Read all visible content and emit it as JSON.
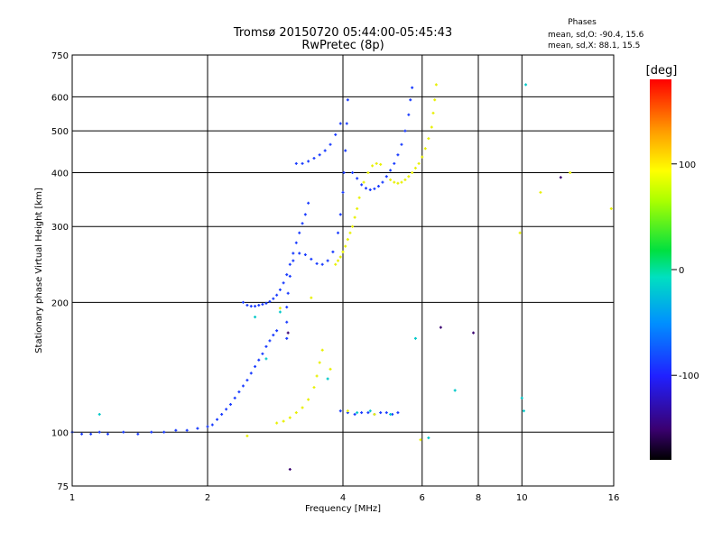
{
  "chart_data": {
    "type": "scatter",
    "title": "Tromsø 20150720 05:44:00-05:45:43",
    "subtitle": "RwPretec (8p)",
    "xlabel": "Frequency [MHz]",
    "ylabel": "Stationary phase Virtual Height [km]",
    "x_scale": "log",
    "y_scale": "log",
    "xlim": [
      1,
      16
    ],
    "ylim": [
      75,
      750
    ],
    "x_ticks": [
      "1",
      "2",
      "4",
      "6",
      "8",
      "10",
      "16"
    ],
    "x_tick_values": [
      1,
      2,
      4,
      6,
      8,
      10,
      16
    ],
    "y_ticks": [
      "75",
      "100",
      "200",
      "300",
      "400",
      "500",
      "600",
      "750"
    ],
    "y_tick_values": [
      75,
      100,
      200,
      300,
      400,
      500,
      600,
      750
    ],
    "grid": true,
    "phase_stats": {
      "title": "Phases",
      "line1": "mean, sd,O: -90.4, 15.6",
      "line2": "mean, sd,X: 88.1, 15.5"
    },
    "colorbar": {
      "label": "[deg]",
      "ticks": [
        "100",
        "0",
        "-100"
      ],
      "tick_values": [
        100,
        0,
        -100
      ],
      "range": [
        -180,
        180
      ]
    },
    "traces": [
      {
        "phase": -100,
        "points": [
          [
            1.0,
            100
          ],
          [
            1.05,
            99
          ],
          [
            1.1,
            99
          ],
          [
            1.15,
            100
          ],
          [
            1.2,
            99
          ],
          [
            1.3,
            100
          ],
          [
            1.4,
            99
          ],
          [
            1.5,
            100
          ],
          [
            1.6,
            100
          ],
          [
            1.7,
            101
          ],
          [
            1.8,
            101
          ],
          [
            1.9,
            102
          ],
          [
            2.0,
            103
          ],
          [
            2.05,
            104
          ],
          [
            2.1,
            107
          ],
          [
            2.15,
            110
          ],
          [
            2.2,
            113
          ],
          [
            2.25,
            116
          ],
          [
            2.3,
            120
          ],
          [
            2.35,
            124
          ],
          [
            2.4,
            128
          ],
          [
            2.45,
            132
          ],
          [
            2.5,
            137
          ],
          [
            2.55,
            142
          ],
          [
            2.6,
            147
          ],
          [
            2.65,
            152
          ],
          [
            2.7,
            158
          ],
          [
            2.75,
            163
          ],
          [
            2.8,
            168
          ],
          [
            2.85,
            172
          ]
        ]
      },
      {
        "phase": -100,
        "points": [
          [
            2.4,
            200
          ],
          [
            2.45,
            197
          ],
          [
            2.5,
            196
          ],
          [
            2.55,
            196
          ],
          [
            2.6,
            197
          ],
          [
            2.65,
            198
          ],
          [
            2.7,
            199
          ],
          [
            2.75,
            201
          ],
          [
            2.8,
            204
          ],
          [
            2.85,
            208
          ],
          [
            2.9,
            214
          ],
          [
            2.95,
            222
          ],
          [
            3.0,
            232
          ],
          [
            3.05,
            245
          ],
          [
            3.1,
            260
          ],
          [
            3.15,
            275
          ],
          [
            3.2,
            290
          ],
          [
            3.25,
            305
          ],
          [
            3.3,
            320
          ],
          [
            3.35,
            340
          ]
        ]
      },
      {
        "phase": -100,
        "points": [
          [
            3.0,
            165
          ],
          [
            3.0,
            180
          ],
          [
            3.0,
            195
          ],
          [
            3.02,
            210
          ],
          [
            3.05,
            230
          ],
          [
            3.1,
            250
          ],
          [
            3.2,
            260
          ],
          [
            3.3,
            258
          ],
          [
            3.4,
            252
          ],
          [
            3.5,
            246
          ],
          [
            3.6,
            245
          ],
          [
            3.7,
            250
          ],
          [
            3.8,
            262
          ],
          [
            3.9,
            290
          ],
          [
            3.95,
            320
          ],
          [
            4.0,
            360
          ],
          [
            4.02,
            400
          ],
          [
            4.05,
            450
          ],
          [
            4.08,
            520
          ],
          [
            4.1,
            590
          ]
        ]
      },
      {
        "phase": -100,
        "points": [
          [
            3.15,
            420
          ],
          [
            3.25,
            420
          ],
          [
            3.35,
            425
          ],
          [
            3.45,
            432
          ],
          [
            3.55,
            440
          ],
          [
            3.65,
            450
          ],
          [
            3.75,
            465
          ],
          [
            3.85,
            490
          ],
          [
            3.95,
            520
          ]
        ]
      },
      {
        "phase": -100,
        "points": [
          [
            4.2,
            400
          ],
          [
            4.3,
            388
          ],
          [
            4.4,
            375
          ],
          [
            4.5,
            368
          ],
          [
            4.6,
            365
          ],
          [
            4.7,
            367
          ],
          [
            4.8,
            372
          ],
          [
            4.9,
            380
          ],
          [
            5.0,
            392
          ],
          [
            5.1,
            405
          ],
          [
            5.2,
            420
          ],
          [
            5.3,
            440
          ],
          [
            5.4,
            465
          ],
          [
            5.5,
            500
          ],
          [
            5.6,
            545
          ],
          [
            5.65,
            590
          ],
          [
            5.7,
            630
          ]
        ]
      },
      {
        "phase": 100,
        "points": [
          [
            3.85,
            245
          ],
          [
            3.9,
            250
          ],
          [
            3.95,
            255
          ],
          [
            4.0,
            262
          ],
          [
            4.05,
            270
          ],
          [
            4.1,
            280
          ],
          [
            4.15,
            290
          ],
          [
            4.2,
            300
          ],
          [
            4.25,
            315
          ],
          [
            4.3,
            330
          ],
          [
            4.35,
            350
          ],
          [
            4.45,
            380
          ],
          [
            4.55,
            400
          ],
          [
            4.65,
            415
          ],
          [
            4.75,
            420
          ],
          [
            4.85,
            418
          ]
        ]
      },
      {
        "phase": 100,
        "points": [
          [
            5.1,
            385
          ],
          [
            5.2,
            380
          ],
          [
            5.3,
            378
          ],
          [
            5.4,
            380
          ],
          [
            5.5,
            385
          ],
          [
            5.6,
            392
          ],
          [
            5.7,
            400
          ],
          [
            5.8,
            410
          ],
          [
            5.9,
            420
          ],
          [
            6.0,
            435
          ],
          [
            6.1,
            455
          ],
          [
            6.2,
            480
          ],
          [
            6.3,
            510
          ],
          [
            6.35,
            550
          ],
          [
            6.4,
            590
          ],
          [
            6.45,
            640
          ]
        ]
      },
      {
        "phase": 100,
        "points": [
          [
            2.85,
            105
          ],
          [
            2.95,
            106
          ],
          [
            3.05,
            108
          ],
          [
            3.15,
            111
          ],
          [
            3.25,
            114
          ],
          [
            3.35,
            119
          ],
          [
            3.45,
            127
          ],
          [
            3.5,
            135
          ],
          [
            3.55,
            145
          ],
          [
            3.6,
            155
          ]
        ]
      },
      {
        "phase": -100,
        "points": [
          [
            3.95,
            112
          ],
          [
            4.1,
            111
          ],
          [
            4.25,
            110
          ],
          [
            4.4,
            111
          ],
          [
            4.55,
            111
          ],
          [
            4.7,
            110
          ],
          [
            4.85,
            111
          ],
          [
            5.0,
            111
          ],
          [
            5.15,
            110
          ],
          [
            5.3,
            111
          ]
        ]
      },
      {
        "phase": 0,
        "points": [
          [
            1.15,
            110
          ],
          [
            2.55,
            185
          ],
          [
            2.7,
            148
          ],
          [
            2.9,
            190
          ],
          [
            3.7,
            133
          ],
          [
            4.3,
            111
          ],
          [
            4.6,
            112
          ],
          [
            5.1,
            110
          ],
          [
            5.8,
            165
          ],
          [
            6.2,
            97
          ],
          [
            7.1,
            125
          ],
          [
            10.0,
            120
          ],
          [
            10.1,
            112
          ],
          [
            10.2,
            640
          ]
        ]
      },
      {
        "phase": 100,
        "points": [
          [
            2.45,
            98
          ],
          [
            2.9,
            194
          ],
          [
            3.4,
            205
          ],
          [
            3.75,
            140
          ],
          [
            4.1,
            112
          ],
          [
            4.7,
            110
          ],
          [
            5.95,
            96
          ],
          [
            9.9,
            290
          ],
          [
            11.0,
            360
          ],
          [
            12.8,
            400
          ],
          [
            15.8,
            330
          ]
        ]
      },
      {
        "phase": -160,
        "points": [
          [
            3.05,
            82
          ],
          [
            3.02,
            170
          ],
          [
            6.6,
            175
          ],
          [
            7.8,
            170
          ],
          [
            12.2,
            390
          ]
        ]
      }
    ]
  }
}
